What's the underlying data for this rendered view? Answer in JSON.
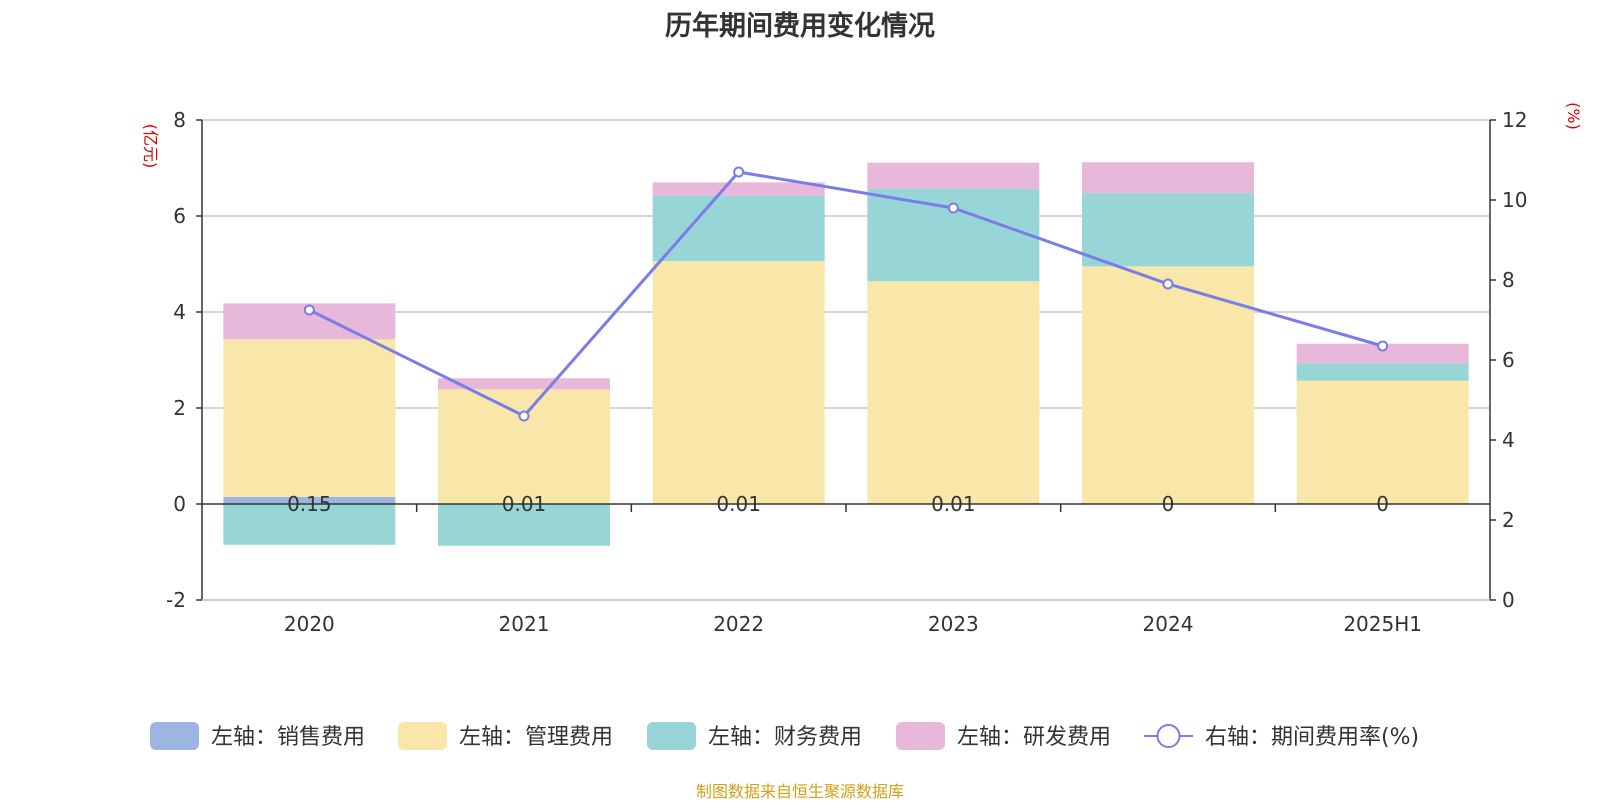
{
  "chart_data": {
    "type": "bar",
    "title": "历年期间费用变化情况",
    "categories": [
      "2020",
      "2021",
      "2022",
      "2023",
      "2024",
      "2025H1"
    ],
    "left_axis": {
      "unit": "(亿元)",
      "ylim": [
        -2,
        8
      ],
      "ticks": [
        "-2",
        "0",
        "2",
        "4",
        "6",
        "8"
      ]
    },
    "right_axis": {
      "unit": "(%)",
      "ylim": [
        0,
        12
      ],
      "ticks": [
        "0",
        "2",
        "4",
        "6",
        "8",
        "10",
        "12"
      ]
    },
    "series": [
      {
        "name": "左轴：销售费用",
        "type": "bar",
        "axis": "left",
        "color": "#9db5e1",
        "values": [
          0.15,
          0.01,
          0.01,
          0.01,
          0,
          0
        ]
      },
      {
        "name": "左轴：管理费用",
        "type": "bar",
        "axis": "left",
        "color": "#f8e7a8",
        "values": [
          3.28,
          2.38,
          5.05,
          4.63,
          4.95,
          2.57
        ]
      },
      {
        "name": "左轴：财务费用",
        "type": "bar",
        "axis": "left",
        "color": "#98d5d6",
        "values": [
          -0.85,
          -0.87,
          1.36,
          1.93,
          1.53,
          0.36
        ]
      },
      {
        "name": "左轴：研发费用",
        "type": "bar",
        "axis": "left",
        "color": "#e8b8da",
        "values": [
          0.75,
          0.23,
          0.28,
          0.54,
          0.64,
          0.41
        ]
      },
      {
        "name": "右轴：期间费用率(%)",
        "type": "line",
        "axis": "right",
        "color": "#7a7de8",
        "values": [
          7.25,
          4.6,
          10.7,
          9.8,
          7.9,
          6.35
        ]
      }
    ],
    "data_labels": [
      "0.15",
      "0.01",
      "0.01",
      "0.01",
      "0",
      "0"
    ],
    "legend_position": "bottom",
    "grid": true
  },
  "source_note": "制图数据来自恒生聚源数据库"
}
